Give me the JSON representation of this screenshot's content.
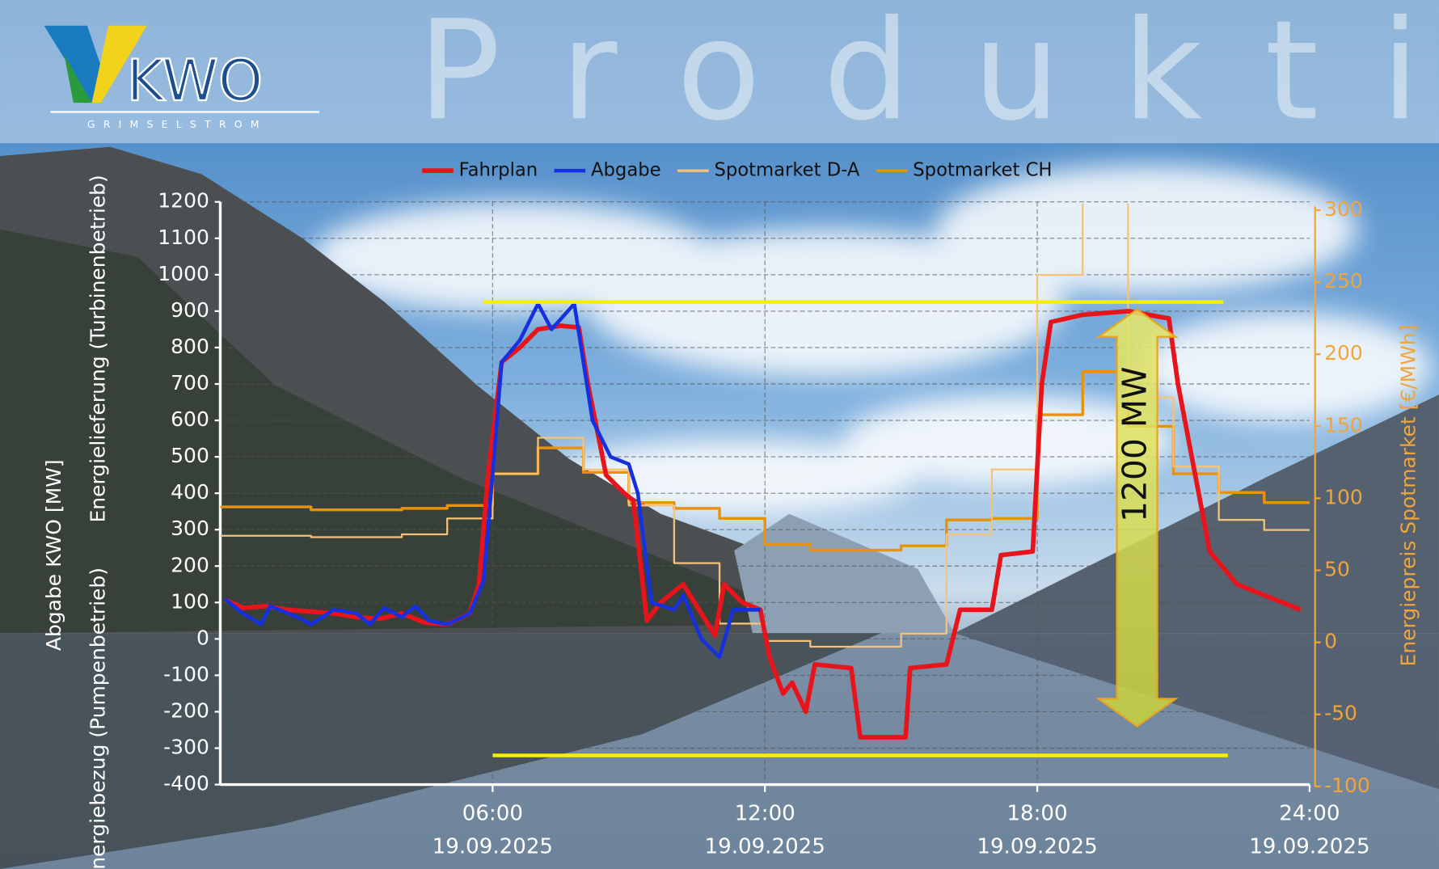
{
  "header": {
    "logo": "KWO",
    "logo_subtitle": "GRIMSELSTROM",
    "title": "Produktion"
  },
  "chart_data": {
    "type": "line",
    "ylabel": "Abgabe KWO [MW]",
    "ylabel_upper": "Energielieferung (Turbinenbetrieb)",
    "ylabel_lower": "Energiebezug (Pumpenbetrieb)",
    "y2label": "Energiepreis Spotmarket [€/MWh]",
    "xlim": [
      0,
      24
    ],
    "xticks": [
      {
        "value": 6,
        "label": "06:00",
        "date": "19.09.2025"
      },
      {
        "value": 12,
        "label": "12:00",
        "date": "19.09.2025"
      },
      {
        "value": 18,
        "label": "18:00",
        "date": "19.09.2025"
      },
      {
        "value": 24,
        "label": "24:00",
        "date": "19.09.2025"
      }
    ],
    "ylim": [
      -400,
      1200
    ],
    "yticks": [
      -400,
      -300,
      -200,
      -100,
      0,
      100,
      200,
      300,
      400,
      500,
      600,
      700,
      800,
      900,
      1000,
      1100,
      1200
    ],
    "y2lim": [
      -100,
      300
    ],
    "y2ticks": [
      -100,
      -50,
      0,
      50,
      100,
      150,
      200,
      250,
      300
    ],
    "grid": true,
    "legend": "top",
    "series": [
      {
        "name": "Fahrplan",
        "color": "#e8141c",
        "width": 5,
        "step": false,
        "x": [
          0.1,
          0.5,
          1,
          1.5,
          2,
          2.5,
          3,
          3.5,
          4,
          4.5,
          5,
          5.5,
          5.7,
          5.9,
          6.2,
          6.6,
          7,
          7.5,
          7.9,
          8.1,
          8.5,
          8.9,
          9.1,
          9.4,
          9.7,
          10.2,
          10.7,
          10.9,
          11.1,
          11.5,
          11.9,
          12.1,
          12.4,
          12.6,
          12.9,
          13.1,
          13.9,
          14.1,
          15.1,
          15.2,
          16,
          16.3,
          17,
          17.2,
          17.9,
          18.1,
          18.3,
          19,
          20,
          20.9,
          21.1,
          21.8,
          22.4,
          23,
          23.8
        ],
        "values": [
          108,
          85,
          90,
          80,
          75,
          70,
          60,
          55,
          70,
          45,
          40,
          70,
          150,
          450,
          760,
          800,
          850,
          860,
          855,
          700,
          450,
          400,
          380,
          50,
          100,
          150,
          50,
          10,
          150,
          100,
          80,
          -50,
          -150,
          -120,
          -200,
          -70,
          -80,
          -270,
          -270,
          -80,
          -70,
          80,
          80,
          230,
          240,
          700,
          870,
          890,
          900,
          880,
          700,
          240,
          150,
          120,
          80
        ]
      },
      {
        "name": "Abgabe",
        "color": "#1530e0",
        "width": 4,
        "step": false,
        "x": [
          0.1,
          0.5,
          0.9,
          1.1,
          1.7,
          2,
          2.5,
          3,
          3.3,
          3.6,
          4,
          4.3,
          4.6,
          5,
          5.5,
          5.8,
          6,
          6.2,
          6.6,
          7,
          7.3,
          7.8,
          8.2,
          8.6,
          9,
          9.2,
          9.5,
          10,
          10.2,
          10.6,
          11,
          11.3,
          11.9
        ],
        "values": [
          110,
          70,
          40,
          90,
          60,
          40,
          80,
          70,
          40,
          85,
          60,
          90,
          50,
          40,
          70,
          160,
          450,
          760,
          820,
          920,
          850,
          920,
          600,
          500,
          480,
          400,
          100,
          80,
          120,
          0,
          -50,
          80,
          80
        ]
      },
      {
        "name": "Spotmarket D-A",
        "color": "#f6c27a",
        "width": 2,
        "step": true,
        "axis": "y2",
        "x": [
          0,
          1,
          2,
          3,
          4,
          5,
          6,
          7,
          8,
          9,
          10,
          11,
          12,
          13,
          14,
          15,
          16,
          17,
          18,
          19,
          20,
          21,
          22,
          23
        ],
        "values": [
          74,
          74,
          73,
          73,
          75,
          86,
          117,
          142,
          120,
          95,
          55,
          13,
          1,
          -3,
          -3,
          6,
          75,
          120,
          255,
          320,
          170,
          122,
          85,
          78
        ]
      },
      {
        "name": "Spotmarket CH",
        "color": "#e8920c",
        "width": 3,
        "step": true,
        "axis": "y2",
        "x": [
          0,
          1,
          2,
          3,
          4,
          5,
          6,
          7,
          8,
          9,
          10,
          11,
          12,
          13,
          14,
          15,
          16,
          17,
          18,
          19,
          20,
          21,
          22,
          23
        ],
        "values": [
          94,
          94,
          92,
          92,
          93,
          95,
          117,
          135,
          118,
          97,
          93,
          86,
          68,
          64,
          64,
          67,
          85,
          86,
          158,
          188,
          150,
          117,
          104,
          97
        ]
      }
    ],
    "annotation": {
      "text": "1200 MW",
      "color": "#f5f000",
      "lines": [
        {
          "y": 925,
          "x": [
            5.8,
            22.1
          ]
        },
        {
          "y": -320,
          "x": [
            6,
            22.2
          ]
        }
      ],
      "arrow": {
        "x": 20.2,
        "y": [
          905,
          -240
        ]
      }
    }
  }
}
